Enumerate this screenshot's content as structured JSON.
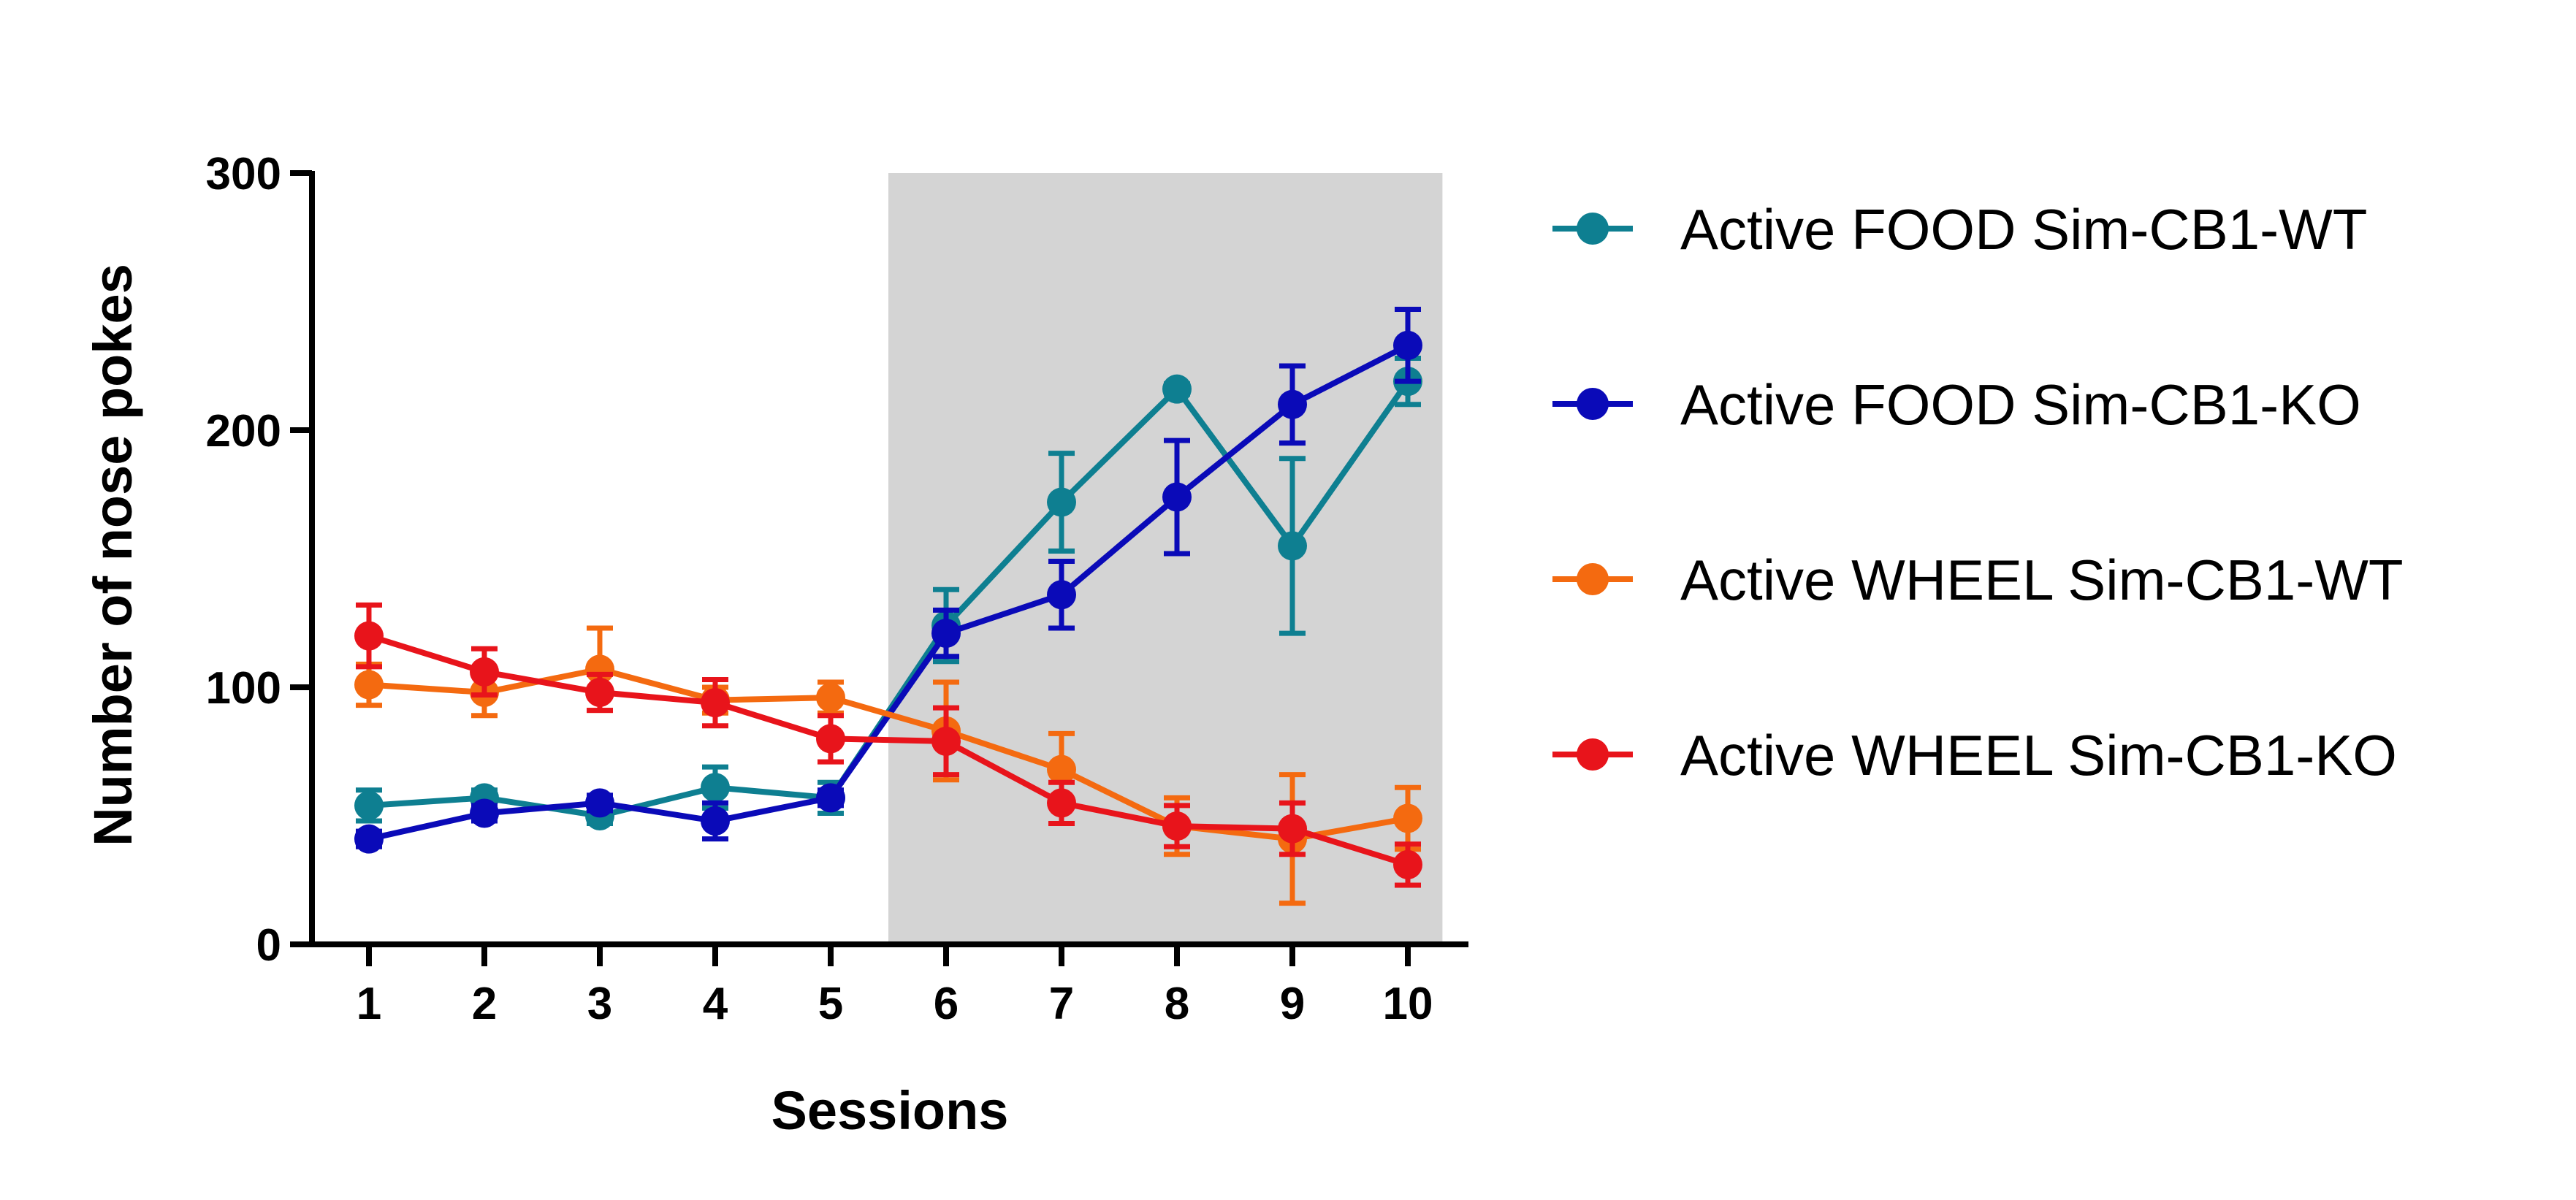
{
  "chart_data": {
    "type": "line",
    "xlabel": "Sessions",
    "ylabel": "Number of nose pokes",
    "x": [
      1,
      2,
      3,
      4,
      5,
      6,
      7,
      8,
      9,
      10
    ],
    "ylim": [
      0,
      300
    ],
    "yticks": [
      0,
      100,
      200,
      300
    ],
    "grid": false,
    "legend_position": "right",
    "shaded_region": {
      "x_from": 5.5,
      "x_to": 10.3,
      "color": "#d4d4d4"
    },
    "series": [
      {
        "name": "Active FOOD Sim-CB1-WT",
        "color": "#0e7f91",
        "values": [
          54,
          57,
          50,
          61,
          57,
          124,
          172,
          216,
          155,
          219
        ],
        "error": [
          6,
          3,
          3,
          8,
          6,
          14,
          19,
          2,
          34,
          9
        ]
      },
      {
        "name": "Active FOOD Sim-CB1-KO",
        "color": "#0a0ab8",
        "values": [
          41,
          51,
          55,
          48,
          57,
          121,
          136,
          174,
          210,
          233
        ],
        "error": [
          3,
          3,
          3,
          7,
          3,
          9,
          13,
          22,
          15,
          14
        ]
      },
      {
        "name": "Active WHEEL Sim-CB1-WT",
        "color": "#f46a10",
        "values": [
          101,
          98,
          107,
          95,
          96,
          83,
          68,
          46,
          41,
          49
        ],
        "error": [
          8,
          9,
          16,
          5,
          6,
          19,
          14,
          11,
          25,
          12
        ]
      },
      {
        "name": "Active WHEEL Sim-CB1-KO",
        "color": "#e8141b",
        "values": [
          120,
          106,
          98,
          94,
          80,
          79,
          55,
          46,
          45,
          31
        ],
        "error": [
          12,
          9,
          7,
          9,
          9,
          13,
          8,
          8,
          10,
          8
        ]
      }
    ]
  }
}
